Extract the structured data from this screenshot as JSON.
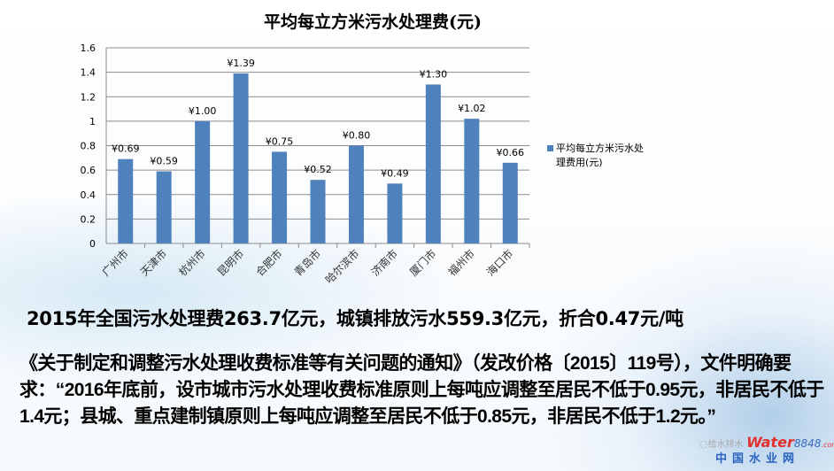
{
  "chart_data": {
    "type": "bar",
    "title": "平均每立方米污水处理费(元)",
    "categories": [
      "广州市",
      "天津市",
      "杭州市",
      "昆明市",
      "合肥市",
      "青岛市",
      "哈尔滨市",
      "济南市",
      "厦门市",
      "福州市",
      "海口市"
    ],
    "series": [
      {
        "name": "平均每立方米污水处理费用(元)",
        "values": [
          0.69,
          0.59,
          1.0,
          1.39,
          0.75,
          0.52,
          0.8,
          0.49,
          1.3,
          1.02,
          0.66
        ]
      }
    ],
    "data_labels": [
      "¥0.69",
      "¥0.59",
      "¥1.00",
      "¥1.39",
      "¥0.75",
      "¥0.52",
      "¥0.80",
      "¥0.49",
      "¥1.30",
      "¥1.02",
      "¥0.66"
    ],
    "ylim": [
      0,
      1.6
    ],
    "yticks": [
      "0",
      "0.2",
      "0.4",
      "0.6",
      "0.8",
      "1",
      "1.2",
      "1.4",
      "1.6"
    ],
    "grid": true,
    "legend": "right",
    "bar_color": "#4f81bd",
    "legend_lines": [
      "平均每立方米污水处",
      "理费用(元)"
    ]
  },
  "headline": "2015年全国污水处理费263.7亿元，城镇排放污水559.3亿元，折合0.47元/吨",
  "paragraph": "《关于制定和调整污水处理收费标准等有关问题的通知》（发改价格〔2015〕119号），文件明确要求：“2016年底前，设市城市污水处理收费标准原则上每吨应调整至居民不低于0.95元，非居民不低于1.4元；县城、重点建制镇原则上每吨应调整至居民不低于0.85元，非居民不低于1.2元。”",
  "watermark": {
    "wechat": "给水排水",
    "logo": "Water",
    "logo_num": "8848",
    "logo_suffix": ".com",
    "site": "中国水业网"
  }
}
